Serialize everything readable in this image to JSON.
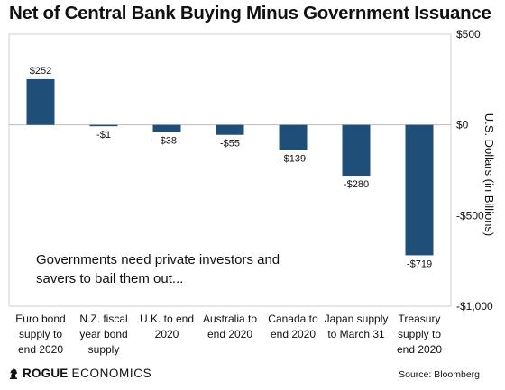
{
  "title": "Net of Central Bank Buying Minus Government Issuance",
  "annotation": "Governments need private investors and savers to bail them out...",
  "footer": {
    "brand_main": "ROGUE",
    "brand_rest": "ECONOMICS",
    "source": "Source: Bloomberg"
  },
  "colors": {
    "bar": "#1f4e79",
    "axis": "#bdbdbd",
    "frame": "#cfcfcf"
  },
  "chart_data": {
    "type": "bar",
    "title": "Net of Central Bank Buying Minus Government Issuance",
    "ylabel": "U.S. Dollars (in Billions)",
    "xlabel": "",
    "ylim": [
      -1000,
      500
    ],
    "yticks": [
      500,
      0,
      -500,
      -1000
    ],
    "ytick_labels": [
      "$500",
      "$0",
      "-$500",
      "-$1,000"
    ],
    "categories": [
      [
        "Euro bond",
        "supply to",
        "end 2020"
      ],
      [
        "N.Z. fiscal",
        "year bond",
        "supply"
      ],
      [
        "U.K. to end",
        "2020"
      ],
      [
        "Australia to",
        "end 2020"
      ],
      [
        "Canada to",
        "end 2020"
      ],
      [
        "Japan supply",
        "to March 31"
      ],
      [
        "Treasury",
        "supply to",
        "end 2020"
      ]
    ],
    "values": [
      252,
      -1,
      -38,
      -55,
      -139,
      -280,
      -719
    ],
    "data_labels": [
      "$252",
      "-$1",
      "-$38",
      "-$55",
      "-$139",
      "-$280",
      "-$719"
    ],
    "grid": false,
    "legend": "none"
  }
}
